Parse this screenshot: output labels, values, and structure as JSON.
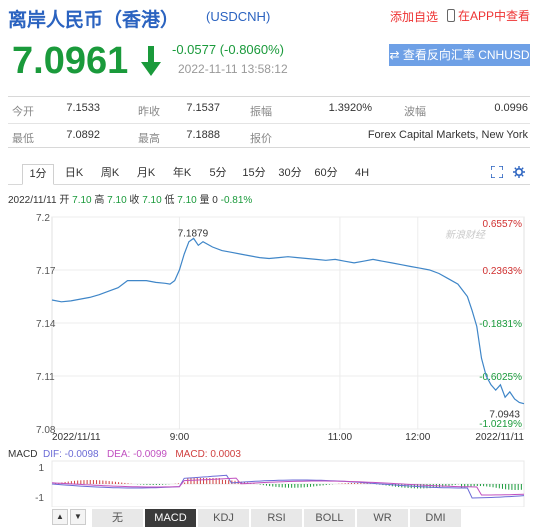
{
  "header": {
    "title": "离岸人民币（香港）",
    "code": "(USDCNH)",
    "add_favorite": "添加自选",
    "app_view": "在APP中查看"
  },
  "quote": {
    "price": "7.0961",
    "change": "-0.0577 (-0.8060%)",
    "datetime": "2022-11-11 13:58:12",
    "reverse_button": "查看反向汇率 CNHUSD"
  },
  "stats": {
    "open_label": "今开",
    "open": "7.1533",
    "prev_close_label": "昨收",
    "prev_close": "7.1537",
    "amplitude_label": "振幅",
    "amplitude": "1.3920%",
    "range_label": "波幅",
    "range": "0.0996",
    "low_label": "最低",
    "low": "7.0892",
    "high_label": "最高",
    "high": "7.1888",
    "quote_label": "报价",
    "quote_source": "Forex Capital Markets, New York"
  },
  "tabs": [
    "1分",
    "日K",
    "周K",
    "月K",
    "年K",
    "5分",
    "15分",
    "30分",
    "60分",
    "4H"
  ],
  "ohlc": {
    "date": "2022/11/11",
    "open_label": "开",
    "open": "7.10",
    "high_label": "高",
    "high": "7.10",
    "close_label": "收",
    "close": "7.10",
    "low_label": "低",
    "low": "7.10",
    "vol_label": "量",
    "vol": "0",
    "pct": "-0.81%"
  },
  "watermark": "新浪财经",
  "chart_data": {
    "type": "line",
    "y_ticks": [
      "7.2",
      "7.17",
      "7.14",
      "7.11",
      "7.08"
    ],
    "y_min": 7.08,
    "y_max": 7.2,
    "pct_ticks": [
      {
        "label": "0.6557%",
        "value": 7.2,
        "color": "#d03030"
      },
      {
        "label": "0.2363%",
        "value": 7.17,
        "color": "#d03030"
      },
      {
        "label": "-0.1831%",
        "value": 7.14,
        "color": "#1a9a3b"
      },
      {
        "label": "-0.6025%",
        "value": 7.11,
        "color": "#1a9a3b"
      },
      {
        "label": "-1.0219%",
        "value": 7.08,
        "color": "#1a9a3b"
      }
    ],
    "x_labels": [
      "2022/11/11",
      "9:00",
      "11:00",
      "12:00",
      "2022/11/11"
    ],
    "x_label_pos": [
      0.0,
      0.27,
      0.61,
      0.775,
      1.0
    ],
    "annotation_high": "7.1879",
    "annotation_last": "7.0943",
    "series": [
      {
        "values": [
          [
            0.0,
            7.153
          ],
          [
            0.02,
            7.152
          ],
          [
            0.04,
            7.1525
          ],
          [
            0.06,
            7.1535
          ],
          [
            0.08,
            7.1545
          ],
          [
            0.1,
            7.156
          ],
          [
            0.12,
            7.158
          ],
          [
            0.14,
            7.16
          ],
          [
            0.16,
            7.164
          ],
          [
            0.18,
            7.164
          ],
          [
            0.2,
            7.164
          ],
          [
            0.22,
            7.163
          ],
          [
            0.24,
            7.1625
          ],
          [
            0.25,
            7.162
          ],
          [
            0.26,
            7.164
          ],
          [
            0.27,
            7.17
          ],
          [
            0.28,
            7.179
          ],
          [
            0.29,
            7.186
          ],
          [
            0.3,
            7.1879
          ],
          [
            0.31,
            7.184
          ],
          [
            0.32,
            7.186
          ],
          [
            0.34,
            7.183
          ],
          [
            0.36,
            7.181
          ],
          [
            0.38,
            7.18
          ],
          [
            0.4,
            7.179
          ],
          [
            0.42,
            7.178
          ],
          [
            0.44,
            7.177
          ],
          [
            0.46,
            7.1765
          ],
          [
            0.48,
            7.177
          ],
          [
            0.5,
            7.1775
          ],
          [
            0.52,
            7.177
          ],
          [
            0.54,
            7.1765
          ],
          [
            0.56,
            7.176
          ],
          [
            0.58,
            7.1755
          ],
          [
            0.6,
            7.176
          ],
          [
            0.62,
            7.175
          ],
          [
            0.64,
            7.174
          ],
          [
            0.66,
            7.175
          ],
          [
            0.68,
            7.176
          ],
          [
            0.7,
            7.175
          ],
          [
            0.72,
            7.174
          ],
          [
            0.74,
            7.173
          ],
          [
            0.76,
            7.172
          ],
          [
            0.78,
            7.171
          ],
          [
            0.8,
            7.17
          ],
          [
            0.82,
            7.168
          ],
          [
            0.84,
            7.165
          ],
          [
            0.86,
            7.162
          ],
          [
            0.88,
            7.155
          ],
          [
            0.89,
            7.147
          ],
          [
            0.9,
            7.138
          ],
          [
            0.91,
            7.12
          ],
          [
            0.92,
            7.11
          ],
          [
            0.93,
            7.105
          ],
          [
            0.94,
            7.102
          ],
          [
            0.95,
            7.105
          ],
          [
            0.96,
            7.098
          ],
          [
            0.97,
            7.101
          ],
          [
            0.98,
            7.097
          ],
          [
            0.99,
            7.095
          ],
          [
            1.0,
            7.0943
          ]
        ]
      }
    ]
  },
  "macd": {
    "label": "MACD",
    "dif": "DIF: -0.0098",
    "dea": "DEA: -0.0099",
    "macd": "MACD: 0.0003",
    "y_ticks": [
      "1",
      "-1"
    ]
  },
  "indicator_tabs": [
    "无",
    "MACD",
    "KDJ",
    "RSI",
    "BOLL",
    "WR",
    "DMI"
  ],
  "colors": {
    "brand_blue": "#2b63c0",
    "down_green": "#1a9a3b",
    "up_red": "#d03030",
    "button_blue": "#6ea0e6"
  }
}
